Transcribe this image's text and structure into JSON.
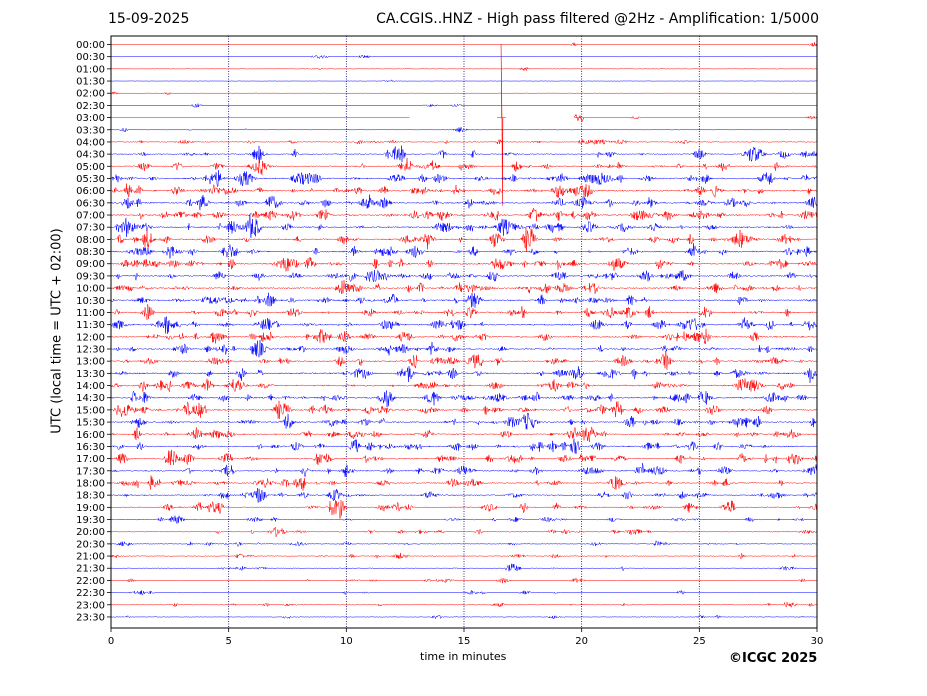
{
  "header": {
    "date": "15-09-2025",
    "title": "CA.CGIS..HNZ - High pass filtered @2Hz - Amplification: 1/5000"
  },
  "footer": {
    "copyright": "©ICGC 2025"
  },
  "chart_data": {
    "type": "line",
    "xlabel": "time in minutes",
    "ylabel": "UTC (local time = UTC + 02:00)",
    "xlim": [
      0,
      30
    ],
    "x_ticks": [
      0,
      5,
      10,
      15,
      20,
      25,
      30
    ],
    "vertical_gridlines_at": [
      5,
      10,
      15,
      20,
      25
    ],
    "grid": "vertical dotted",
    "series_colors": {
      "even_rows": "#ff0000",
      "odd_rows": "#0000ff"
    },
    "row_labels": [
      "00:00",
      "00:30",
      "01:00",
      "01:30",
      "02:00",
      "02:30",
      "03:00",
      "03:30",
      "04:00",
      "04:30",
      "05:00",
      "05:30",
      "06:00",
      "06:30",
      "07:00",
      "07:30",
      "08:00",
      "08:30",
      "09:00",
      "09:30",
      "10:00",
      "10:30",
      "11:00",
      "11:30",
      "12:00",
      "12:30",
      "13:00",
      "13:30",
      "14:00",
      "14:30",
      "15:00",
      "15:30",
      "16:00",
      "16:30",
      "17:00",
      "17:30",
      "18:00",
      "18:30",
      "19:00",
      "19:30",
      "20:00",
      "20:30",
      "21:00",
      "21:30",
      "22:00",
      "22:30",
      "23:00",
      "23:30"
    ],
    "row_activity": [
      0.05,
      0.05,
      0.05,
      0.05,
      0.05,
      0.06,
      0.06,
      0.1,
      0.4,
      0.6,
      0.7,
      0.9,
      1.0,
      0.95,
      1.0,
      0.95,
      0.9,
      0.95,
      1.0,
      0.9,
      0.9,
      0.9,
      0.9,
      0.9,
      0.95,
      0.9,
      0.9,
      0.95,
      0.95,
      0.95,
      0.95,
      0.9,
      0.85,
      0.85,
      0.85,
      0.8,
      0.75,
      0.7,
      0.65,
      0.5,
      0.45,
      0.35,
      0.3,
      0.25,
      0.25,
      0.25,
      0.3,
      0.2
    ],
    "notable_events": [
      {
        "row": "03:00",
        "minute": 16.6,
        "description": "large spike"
      },
      {
        "row": "03:00",
        "minute": 19.8,
        "description": "small burst"
      }
    ],
    "data_gaps": [
      {
        "row": "03:00",
        "from_minute": 12.7,
        "to_minute": 16.4
      },
      {
        "row": "03:00",
        "from_minute": 16.8,
        "to_minute": 19.7
      }
    ]
  }
}
